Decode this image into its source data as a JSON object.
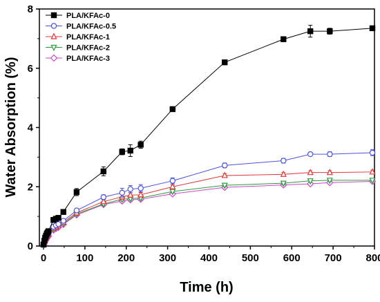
{
  "chart_data": {
    "type": "line",
    "title": "",
    "xlabel": "Time (h)",
    "ylabel": "Water Absorption (%)",
    "xlim": [
      -10,
      800
    ],
    "ylim": [
      0,
      8
    ],
    "xticks": [
      0,
      100,
      200,
      300,
      400,
      500,
      600,
      700,
      800
    ],
    "yticks": [
      0,
      2,
      4,
      6,
      8
    ],
    "grid": false,
    "legend_position": "top-left",
    "x": [
      0,
      2,
      4,
      6,
      8,
      10,
      12,
      24,
      30,
      36,
      48,
      80,
      145,
      190,
      210,
      235,
      312,
      438,
      580,
      645,
      692,
      795
    ],
    "series": [
      {
        "name": "PLA/KFAc-0",
        "color": "#000000",
        "marker": "square",
        "filled": true,
        "values": [
          0.05,
          0.18,
          0.28,
          0.35,
          0.42,
          0.46,
          0.5,
          0.88,
          0.92,
          0.95,
          1.15,
          1.82,
          2.52,
          3.18,
          3.22,
          3.42,
          4.62,
          6.2,
          6.98,
          7.25,
          7.25,
          7.35
        ],
        "errors": [
          0.03,
          0.03,
          0.03,
          0.03,
          0.03,
          0.03,
          0.03,
          0.05,
          0.05,
          0.05,
          0.05,
          0.12,
          0.15,
          0.1,
          0.2,
          0.12,
          0.08,
          0.08,
          0.08,
          0.2,
          0.1,
          0.05
        ]
      },
      {
        "name": "PLA/KFAc-0.5",
        "color": "#4a50e0",
        "marker": "circle",
        "filled": false,
        "values": [
          0.04,
          0.14,
          0.22,
          0.28,
          0.34,
          0.38,
          0.42,
          0.65,
          0.7,
          0.74,
          0.85,
          1.2,
          1.65,
          1.8,
          1.92,
          1.95,
          2.2,
          2.72,
          2.88,
          3.1,
          3.1,
          3.15
        ],
        "errors": [
          0.03,
          0.03,
          0.03,
          0.03,
          0.03,
          0.03,
          0.03,
          0.05,
          0.05,
          0.05,
          0.06,
          0.06,
          0.08,
          0.15,
          0.12,
          0.12,
          0.1,
          0.08,
          0.08,
          0.06,
          0.08,
          0.1
        ]
      },
      {
        "name": "PLA/KFAc-1",
        "color": "#e03535",
        "marker": "triangle-up",
        "filled": false,
        "values": [
          0.04,
          0.12,
          0.2,
          0.26,
          0.31,
          0.35,
          0.38,
          0.6,
          0.65,
          0.69,
          0.8,
          1.12,
          1.5,
          1.66,
          1.72,
          1.73,
          2.0,
          2.38,
          2.42,
          2.48,
          2.48,
          2.5
        ],
        "errors": [
          0.03,
          0.03,
          0.03,
          0.03,
          0.03,
          0.03,
          0.03,
          0.05,
          0.05,
          0.05,
          0.05,
          0.05,
          0.06,
          0.08,
          0.08,
          0.08,
          0.06,
          0.06,
          0.06,
          0.06,
          0.06,
          0.06
        ]
      },
      {
        "name": "PLA/KFAc-2",
        "color": "#2a9a3a",
        "marker": "triangle-down",
        "filled": false,
        "values": [
          0.03,
          0.11,
          0.18,
          0.24,
          0.29,
          0.33,
          0.36,
          0.57,
          0.62,
          0.66,
          0.76,
          1.08,
          1.42,
          1.58,
          1.6,
          1.62,
          1.84,
          2.05,
          2.12,
          2.2,
          2.22,
          2.22
        ],
        "errors": [
          0.03,
          0.03,
          0.03,
          0.03,
          0.03,
          0.03,
          0.03,
          0.04,
          0.04,
          0.04,
          0.05,
          0.05,
          0.05,
          0.06,
          0.06,
          0.06,
          0.05,
          0.05,
          0.05,
          0.05,
          0.05,
          0.05
        ]
      },
      {
        "name": "PLA/KFAc-3",
        "color": "#cc44cc",
        "marker": "diamond",
        "filled": false,
        "values": [
          0.03,
          0.1,
          0.17,
          0.22,
          0.27,
          0.31,
          0.34,
          0.54,
          0.59,
          0.63,
          0.73,
          1.05,
          1.4,
          1.52,
          1.56,
          1.58,
          1.76,
          1.98,
          2.06,
          2.1,
          2.14,
          2.18
        ],
        "errors": [
          0.03,
          0.03,
          0.03,
          0.03,
          0.03,
          0.03,
          0.03,
          0.04,
          0.04,
          0.04,
          0.05,
          0.05,
          0.05,
          0.06,
          0.06,
          0.06,
          0.05,
          0.05,
          0.05,
          0.05,
          0.05,
          0.05
        ]
      }
    ]
  }
}
